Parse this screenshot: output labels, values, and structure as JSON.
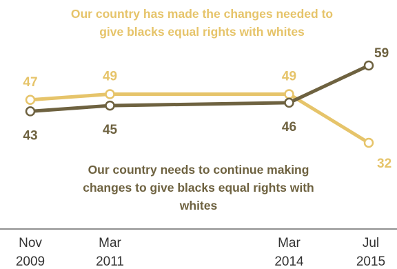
{
  "chart_data": {
    "type": "line",
    "categories": [
      {
        "month": "Nov",
        "year": "2009"
      },
      {
        "month": "Mar",
        "year": "2011"
      },
      {
        "month": "Mar",
        "year": "2014"
      },
      {
        "month": "Jul",
        "year": "2015"
      }
    ],
    "x_dates": [
      "2009-11",
      "2011-03",
      "2014-03",
      "2015-07"
    ],
    "series": [
      {
        "name_lines": [
          "Our country has made the changes needed to",
          "give blacks equal rights with whites"
        ],
        "values": [
          47,
          49,
          49,
          32
        ],
        "color": "#E6C46A"
      },
      {
        "name_lines": [
          "Our country needs to continue making",
          "changes to give blacks equal rights with",
          "whites"
        ],
        "values": [
          43,
          45,
          46,
          59
        ],
        "color": "#6E6240"
      }
    ],
    "grid": false,
    "legend": "direct labels"
  }
}
